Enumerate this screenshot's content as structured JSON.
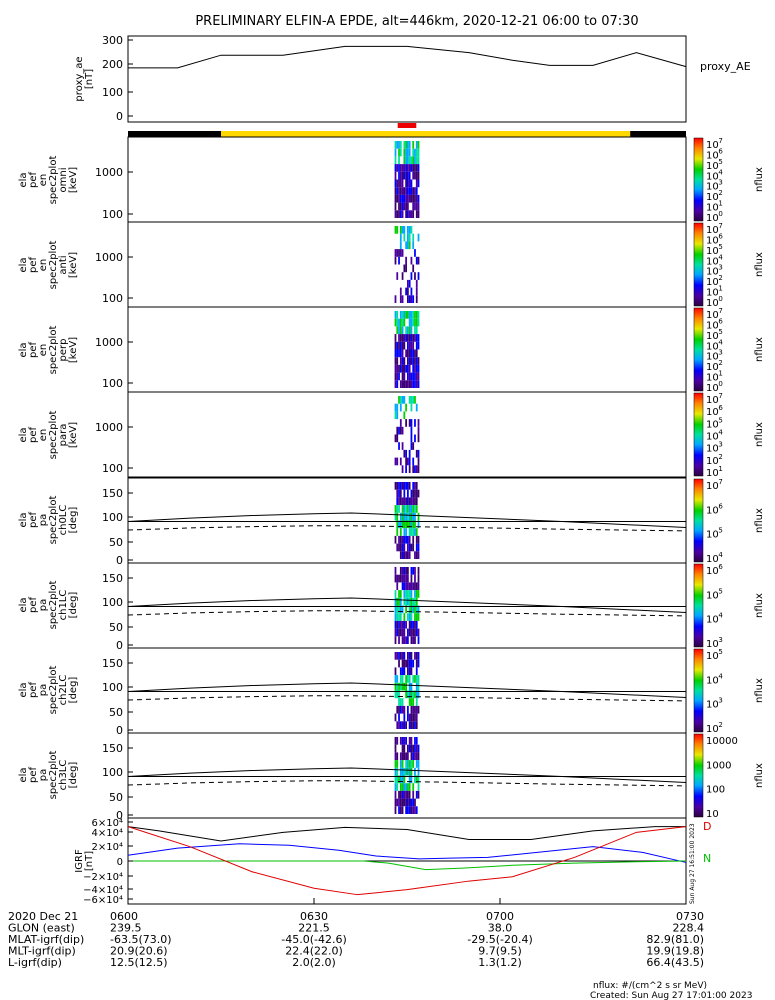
{
  "title": "PRELIMINARY ELFIN-A EPDE, alt=446km, 2020-12-21 06:00 to 07:30",
  "colors": {
    "fgm_black": "#000000",
    "fgm_blue": "#0000ff",
    "fgm_green": "#00c000",
    "fgm_red": "#e00000",
    "science_bar_yellow": "#ffd800",
    "science_bar_black": "#000000",
    "science_bar_red": "#ee0000"
  },
  "panels": [
    {
      "id": "proxy_ae",
      "ylabel": [
        "proxy_ae",
        "[nT]"
      ],
      "yticks": [
        "300",
        "200",
        "100",
        "0"
      ],
      "side_label": "proxy_AE"
    },
    {
      "id": "omni",
      "ylabel": [
        "ela",
        "pef",
        "en",
        "spec2plot",
        "omni",
        "[keV]"
      ],
      "yticks": [
        "1000",
        "100"
      ],
      "cbar_ticks": [
        "10",
        "10",
        "10",
        "10",
        "10",
        "10",
        "10",
        "10"
      ],
      "cbar_exp": [
        "7",
        "6",
        "5",
        "4",
        "3",
        "2",
        "1",
        "0"
      ],
      "cbar_label": "nflux"
    },
    {
      "id": "anti",
      "ylabel": [
        "ela",
        "pef",
        "en",
        "spec2plot",
        "anti",
        "[keV]"
      ],
      "yticks": [
        "1000",
        "100"
      ],
      "cbar_ticks": [
        "10",
        "10",
        "10",
        "10",
        "10",
        "10",
        "10",
        "10"
      ],
      "cbar_exp": [
        "7",
        "6",
        "5",
        "4",
        "3",
        "2",
        "1",
        "0"
      ],
      "cbar_label": "nflux"
    },
    {
      "id": "perp",
      "ylabel": [
        "ela",
        "pef",
        "en",
        "spec2plot",
        "perp",
        "[keV]"
      ],
      "yticks": [
        "1000",
        "100"
      ],
      "cbar_ticks": [
        "10",
        "10",
        "10",
        "10",
        "10",
        "10",
        "10",
        "10"
      ],
      "cbar_exp": [
        "7",
        "6",
        "5",
        "4",
        "3",
        "2",
        "1",
        "0"
      ],
      "cbar_label": "nflux"
    },
    {
      "id": "para",
      "ylabel": [
        "ela",
        "pef",
        "en",
        "spec2plot",
        "para",
        "[keV]"
      ],
      "yticks": [
        "1000",
        "100"
      ],
      "cbar_ticks": [
        "10",
        "10",
        "10",
        "10",
        "10",
        "10",
        "10"
      ],
      "cbar_exp": [
        "7",
        "6",
        "5",
        "4",
        "3",
        "2",
        "1"
      ],
      "cbar_label": "nflux"
    },
    {
      "id": "ch0LC",
      "ylabel": [
        "ela",
        "pef",
        "pa",
        "spec2plot",
        "ch0LC",
        "[deg]"
      ],
      "yticks": [
        "150",
        "100",
        "50",
        "0"
      ],
      "cbar_ticks": [
        "10",
        "10",
        "10",
        "10"
      ],
      "cbar_exp": [
        "7",
        "6",
        "5",
        "4"
      ],
      "cbar_label": "nflux"
    },
    {
      "id": "ch1LC",
      "ylabel": [
        "ela",
        "pef",
        "pa",
        "spec2plot",
        "ch1LC",
        "[deg]"
      ],
      "yticks": [
        "150",
        "100",
        "50",
        "0"
      ],
      "cbar_ticks": [
        "10",
        "10",
        "10",
        "10"
      ],
      "cbar_exp": [
        "6",
        "5",
        "4",
        "3"
      ],
      "cbar_label": "nflux"
    },
    {
      "id": "ch2LC",
      "ylabel": [
        "ela",
        "pef",
        "pa",
        "spec2plot",
        "ch2LC",
        "[deg]"
      ],
      "yticks": [
        "150",
        "100",
        "50",
        "0"
      ],
      "cbar_ticks": [
        "10",
        "10",
        "10",
        "10"
      ],
      "cbar_exp": [
        "5",
        "4",
        "3",
        "2"
      ],
      "cbar_label": "nflux"
    },
    {
      "id": "ch3LC",
      "ylabel": [
        "ela",
        "pef",
        "pa",
        "spec2plot",
        "ch3LC",
        "[deg]"
      ],
      "yticks": [
        "150",
        "100",
        "50",
        "0"
      ],
      "cbar_ticks": [
        "10000",
        "1000",
        "100",
        "10"
      ],
      "cbar_exp": [
        "",
        "",
        "",
        ""
      ],
      "cbar_label": "nflux"
    },
    {
      "id": "igrf",
      "ylabel": [
        "IGRF",
        "[nT]"
      ],
      "yticks": [
        "6×10⁴",
        "4×10⁴",
        "2×10⁴",
        "0",
        "−2×10⁴",
        "−4×10⁴",
        "−6×10⁴"
      ],
      "side_letters": [
        "D",
        "N"
      ],
      "side_stamp": "Sun Aug 27 16:51:00 2023"
    }
  ],
  "chart_data": {
    "type": "line",
    "x_time_labels": [
      "0600",
      "0630",
      "0700",
      "0730"
    ],
    "proxy_ae": {
      "ylim": [
        0,
        300
      ],
      "x_minutes": [
        0,
        8,
        15,
        25,
        35,
        45,
        55,
        62,
        68,
        75,
        82,
        90
      ],
      "values": [
        190,
        190,
        240,
        240,
        275,
        275,
        250,
        220,
        200,
        200,
        250,
        195
      ]
    },
    "pitch_angle_lines": {
      "solid_deg": [
        90,
        98,
        104,
        108,
        110,
        102,
        90,
        76
      ],
      "dashed_deg": [
        70,
        75,
        78,
        80,
        80,
        77,
        72,
        68
      ],
      "x_minutes": [
        0,
        10,
        20,
        30,
        36,
        50,
        70,
        90
      ]
    },
    "igrf": {
      "ylim": [
        -60000,
        60000
      ],
      "series": [
        {
          "name": "",
          "color": "black",
          "x_minutes": [
            0,
            5,
            15,
            25,
            35,
            45,
            55,
            65,
            75,
            85,
            90
          ],
          "values": [
            48000,
            42000,
            28000,
            40000,
            47000,
            44000,
            30000,
            30000,
            42000,
            48000,
            48000
          ]
        },
        {
          "name": "",
          "color": "blue",
          "x_minutes": [
            0,
            8,
            18,
            26,
            34,
            40,
            47,
            52,
            58,
            66,
            75,
            83,
            90
          ],
          "values": [
            8000,
            18000,
            24000,
            22000,
            15000,
            7000,
            3000,
            4000,
            5000,
            12000,
            20000,
            12000,
            -2000
          ]
        },
        {
          "name": "",
          "color": "green",
          "x_minutes": [
            0,
            20,
            38,
            42,
            48,
            54,
            62,
            72,
            82,
            90
          ],
          "values": [
            0,
            0,
            0,
            -3000,
            -12000,
            -10000,
            -6000,
            -3000,
            -1000,
            0
          ]
        },
        {
          "name": "",
          "color": "red",
          "x_minutes": [
            0,
            10,
            20,
            30,
            37,
            45,
            55,
            62,
            72,
            82,
            90
          ],
          "values": [
            48000,
            20000,
            -15000,
            -38000,
            -47000,
            -40000,
            -28000,
            -22000,
            5000,
            40000,
            48000
          ]
        }
      ]
    },
    "science_zone": {
      "x_minutes_start": 0,
      "x_minutes_end": 90,
      "yellow_minutes": [
        15,
        81
      ],
      "red_minutes": [
        43.5,
        46.5
      ]
    },
    "burst_window_minutes": [
      43,
      47
    ]
  },
  "ephemeris": {
    "rows": [
      {
        "label": "2020 Dec 21",
        "values": [
          "0600",
          "0630",
          "0700",
          "0730"
        ]
      },
      {
        "label": "GLON (east)",
        "values": [
          "239.5",
          "221.5",
          "38.0",
          "228.4"
        ]
      },
      {
        "label": "MLAT-igrf(dip)",
        "values": [
          "-63.5(73.0)",
          "-45.0(-42.6)",
          "-29.5(-20.4)",
          "82.9(81.0)"
        ]
      },
      {
        "label": "MLT-igrf(dip)",
        "values": [
          "20.9(20.6)",
          "22.4(22.0)",
          "9.7(9.5)",
          "19.9(19.8)"
        ]
      },
      {
        "label": "L-igrf(dip)",
        "values": [
          "12.5(12.5)",
          "2.0(2.0)",
          "1.3(1.2)",
          "66.4(43.5)"
        ]
      }
    ]
  },
  "footer": {
    "units": "nflux: #/(cm^2 s sr MeV)",
    "created": "Created: Sun Aug 27 17:01:00 2023"
  }
}
